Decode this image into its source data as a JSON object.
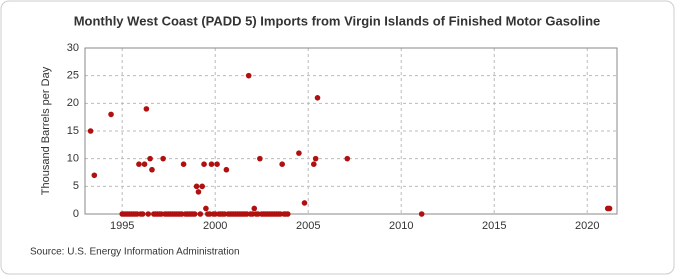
{
  "chart_data": {
    "type": "scatter",
    "title": "Monthly West Coast (PADD 5) Imports from Virgin Islands of Finished Motor Gasoline",
    "y_label": "Thousand Barrels per Day",
    "source": "Source: U.S. Energy Information Administration",
    "color": "#b01010",
    "x": [
      1993.3,
      1993.5,
      1994.4,
      1995.0,
      1995.1,
      1995.2,
      1995.3,
      1995.4,
      1995.5,
      1995.6,
      1995.7,
      1995.8,
      1995.9,
      1996.0,
      1996.1,
      1996.2,
      1996.3,
      1996.4,
      1996.5,
      1996.6,
      1996.7,
      1996.8,
      1996.9,
      1997.0,
      1997.1,
      1997.2,
      1997.3,
      1997.4,
      1997.5,
      1997.6,
      1997.7,
      1997.8,
      1997.9,
      1998.0,
      1998.1,
      1998.2,
      1998.3,
      1998.4,
      1998.5,
      1998.6,
      1998.7,
      1998.8,
      1998.9,
      1999.0,
      1999.1,
      1999.2,
      1999.3,
      1999.4,
      1999.5,
      1999.6,
      1999.7,
      1999.8,
      1999.9,
      2000.0,
      2000.1,
      2000.2,
      2000.3,
      2000.4,
      2000.5,
      2000.6,
      2000.7,
      2000.8,
      2000.9,
      2001.0,
      2001.1,
      2001.2,
      2001.3,
      2001.4,
      2001.5,
      2001.6,
      2001.7,
      2001.8,
      2001.9,
      2002.0,
      2002.1,
      2002.2,
      2002.3,
      2002.4,
      2002.5,
      2002.6,
      2002.7,
      2002.8,
      2002.9,
      2003.0,
      2003.1,
      2003.2,
      2003.3,
      2003.4,
      2003.5,
      2003.6,
      2003.7,
      2003.8,
      2003.9,
      2004.5,
      2004.8,
      2005.3,
      2005.4,
      2005.5,
      2007.1,
      2011.1,
      2021.1,
      2021.2
    ],
    "values": [
      15,
      7,
      18,
      0,
      0,
      0,
      0,
      0,
      0,
      0,
      0,
      0,
      9,
      0,
      0,
      9,
      19,
      0,
      10,
      8,
      0,
      0,
      0,
      0,
      0,
      10,
      0,
      0,
      0,
      0,
      0,
      0,
      0,
      0,
      0,
      0,
      9,
      0,
      0,
      0,
      0,
      0,
      0,
      5,
      4,
      0,
      5,
      9,
      1,
      0,
      0,
      9,
      0,
      0,
      9,
      0,
      0,
      0,
      0,
      8,
      0,
      0,
      0,
      0,
      0,
      0,
      0,
      0,
      0,
      0,
      0,
      25,
      0,
      0,
      1,
      0,
      0,
      10,
      0,
      0,
      0,
      0,
      0,
      0,
      0,
      0,
      0,
      0,
      0,
      9,
      0,
      0,
      0,
      11,
      2,
      9,
      10,
      21,
      10,
      0,
      1,
      1
    ],
    "xlim": [
      1993,
      2021.6
    ],
    "xticks": [
      1995,
      2000,
      2005,
      2010,
      2015,
      2020
    ],
    "ylim": [
      0,
      30
    ],
    "yticks": [
      0,
      5,
      10,
      15,
      20,
      25,
      30
    ],
    "grid": true
  }
}
